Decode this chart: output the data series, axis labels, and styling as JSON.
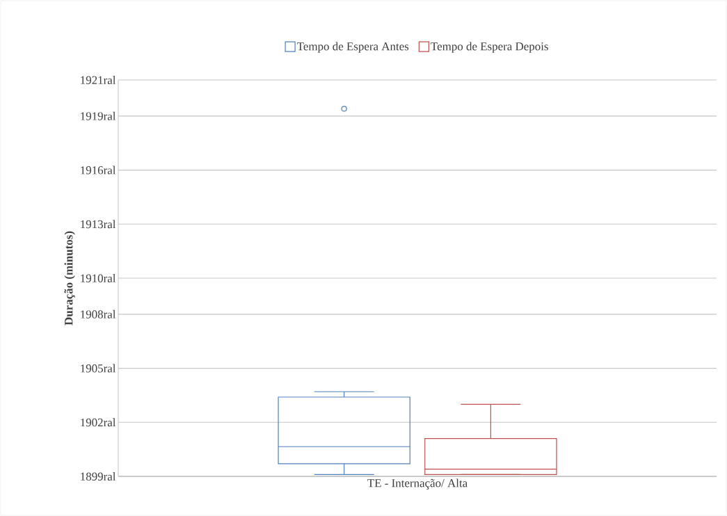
{
  "chart_data": {
    "type": "box",
    "ylabel": "Duração (minutos)",
    "categories": [
      "TE - Internação/ Alta"
    ],
    "series": [
      {
        "name": "Tempo de Espera Antes",
        "color": "#4f81bd",
        "boxes": [
          {
            "low": 1899.1,
            "q1": 1899.7,
            "median": 1900.65,
            "q3": 1903.4,
            "high": 1903.7,
            "outliers": [
              1919.4
            ]
          }
        ]
      },
      {
        "name": "Tempo de Espera Depois",
        "color": "#c0504d",
        "boxes": [
          {
            "low": 1899.1,
            "q1": 1899.1,
            "median": 1899.4,
            "q3": 1901.1,
            "high": 1903.0
          }
        ]
      }
    ],
    "ylim": [
      1899,
      1921
    ],
    "yticks": [
      {
        "value": 1899,
        "label": "1899ral"
      },
      {
        "value": 1902,
        "label": "1902ral"
      },
      {
        "value": 1905,
        "label": "1905ral"
      },
      {
        "value": 1908,
        "label": "1908ral"
      },
      {
        "value": 1910,
        "label": "1910ral"
      },
      {
        "value": 1913,
        "label": "1913ral"
      },
      {
        "value": 1916,
        "label": "1916ral"
      },
      {
        "value": 1919,
        "label": "1919ral"
      },
      {
        "value": 1921,
        "label": "1921ral"
      }
    ],
    "grid": "y",
    "legend": "top",
    "marker": "circle"
  }
}
